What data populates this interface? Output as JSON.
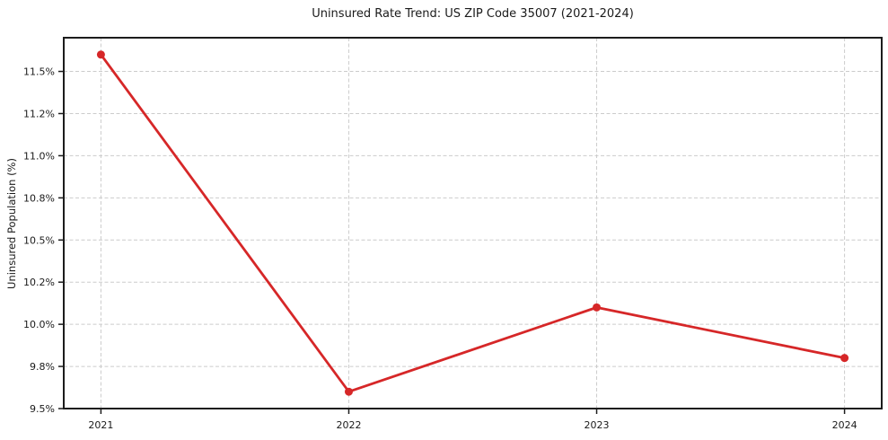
{
  "chart_data": {
    "type": "line",
    "title": "Uninsured Rate Trend: US ZIP Code 35007 (2021-2024)",
    "xlabel": "",
    "ylabel": "Uninsured Population (%)",
    "x": [
      2021,
      2022,
      2023,
      2024
    ],
    "series": [
      {
        "name": "Uninsured rate",
        "values": [
          11.6,
          9.6,
          10.1,
          9.8
        ]
      }
    ],
    "xticks": {
      "values": [
        2021,
        2022,
        2023,
        2024
      ],
      "labels": [
        "2021",
        "2022",
        "2023",
        "2024"
      ]
    },
    "yticks": {
      "values": [
        9.5,
        9.75,
        10.0,
        10.25,
        10.5,
        10.75,
        11.0,
        11.25,
        11.5
      ],
      "labels": [
        "9.5%",
        "9.8%",
        "10.0%",
        "10.2%",
        "10.5%",
        "10.8%",
        "11.0%",
        "11.2%",
        "11.5%"
      ]
    },
    "xlim": [
      2020.85,
      2024.15
    ],
    "ylim": [
      9.5,
      11.7
    ],
    "grid": true,
    "legend": false,
    "marker": "circle",
    "colors": {
      "line": "#d62728",
      "marker": "#d62728",
      "grid": "#cccccc",
      "spine": "#1c1c1c",
      "text": "#1a1a1a",
      "background": "#ffffff"
    }
  }
}
